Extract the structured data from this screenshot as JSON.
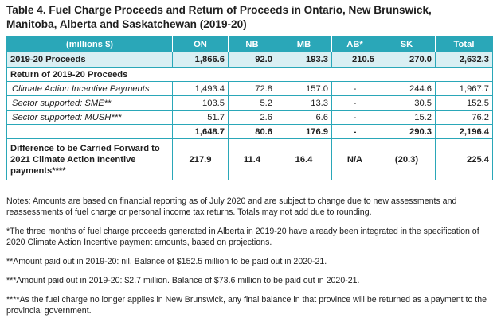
{
  "title_line1": "Table 4. Fuel Charge Proceeds and Return of Proceeds in Ontario, New Brunswick,",
  "title_line2": "Manitoba, Alberta and Saskatchewan (2019-20)",
  "header": {
    "units": "(millions $)",
    "columns": [
      "ON",
      "NB",
      "MB",
      "AB*",
      "SK",
      "Total"
    ]
  },
  "proceeds_row": {
    "label": "2019-20 Proceeds",
    "values": [
      "1,866.6",
      "92.0",
      "193.3",
      "210.5",
      "270.0",
      "2,632.3"
    ]
  },
  "section_label": "Return of 2019-20 Proceeds",
  "items": [
    {
      "label": "Climate Action Incentive Payments",
      "values": [
        "1,493.4",
        "72.8",
        "157.0",
        "-",
        "244.6",
        "1,967.7"
      ]
    },
    {
      "label": "Sector supported: SME**",
      "values": [
        "103.5",
        "5.2",
        "13.3",
        "-",
        "30.5",
        "152.5"
      ]
    },
    {
      "label": "Sector supported: MUSH***",
      "values": [
        "51.7",
        "2.6",
        "6.6",
        "-",
        "15.2",
        "76.2"
      ]
    }
  ],
  "subtotal_row": {
    "label": "",
    "values": [
      "1,648.7",
      "80.6",
      "176.9",
      "-",
      "290.3",
      "2,196.4"
    ]
  },
  "forward_row": {
    "label": "Difference to be Carried Forward to 2021 Climate Action Incentive payments****",
    "values": [
      "217.9",
      "11.4",
      "16.4",
      "N/A",
      "(20.3)",
      "225.4"
    ]
  },
  "notes": [
    "Notes: Amounts are based on financial reporting as of July 2020 and are subject to change due to new assessments and reassessments of fuel charge or personal income tax returns. Totals may not add due to rounding.",
    "*The three months of fuel charge proceeds generated in Alberta in 2019-20 have already been integrated in the specification of 2020 Climate Action Incentive payment amounts, based on projections.",
    "**Amount paid out in 2019-20: nil. Balance of $152.5 million to be paid out in 2020-21.",
    "***Amount paid out in 2019-20: $2.7 million. Balance of $73.6 million to be paid out in 2020-21.",
    "****As the fuel charge no longer applies in New Brunswick, any final balance in that province will be returned as a payment to the provincial government."
  ],
  "colors": {
    "accent": "#2aa7b8",
    "band": "#d9eff3"
  }
}
